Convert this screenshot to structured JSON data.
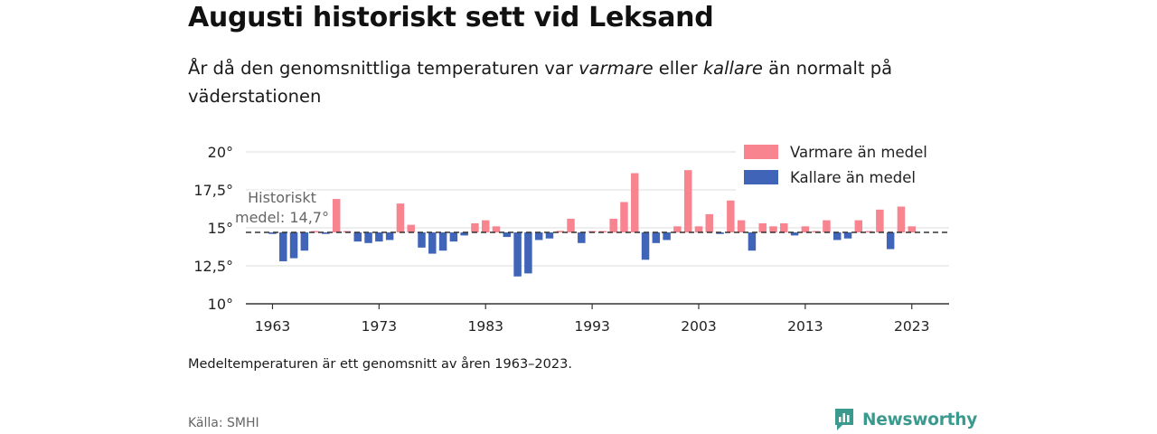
{
  "title": "Augusti historiskt sett vid Leksand",
  "subtitle": {
    "part1": "År då den genomsnittliga temperaturen var ",
    "warm_word": "varmare",
    "part2": " eller ",
    "cold_word": "kallare",
    "part3": " än normalt på väderstationen"
  },
  "note": "Medeltemperaturen är ett genomsnitt av åren 1963–2023.",
  "source": "Källa: SMHI",
  "brand": "Newsworthy",
  "colors": {
    "warm": "#f7848f",
    "cold": "#3f64b8",
    "brand": "#3a9a8e"
  },
  "chart_data": {
    "type": "bar",
    "baseline": 14.7,
    "baseline_label_line1": "Historiskt",
    "baseline_label_line2": "medel: 14,7°",
    "ylim": [
      10,
      20
    ],
    "yticks": [
      {
        "value": 10,
        "label": "10°"
      },
      {
        "value": 12.5,
        "label": "12,5°"
      },
      {
        "value": 15,
        "label": "15°"
      },
      {
        "value": 17.5,
        "label": "17,5°"
      },
      {
        "value": 20,
        "label": "20°"
      }
    ],
    "xticks": [
      {
        "value": 1963,
        "label": "1963"
      },
      {
        "value": 1973,
        "label": "1973"
      },
      {
        "value": 1983,
        "label": "1983"
      },
      {
        "value": 1993,
        "label": "1993"
      },
      {
        "value": 2003,
        "label": "2003"
      },
      {
        "value": 2013,
        "label": "2013"
      },
      {
        "value": 2023,
        "label": "2023"
      }
    ],
    "xlim": [
      1960.5,
      2026.5
    ],
    "legend": [
      {
        "key": "warm",
        "label": "Varmare än medel"
      },
      {
        "key": "cold",
        "label": "Kallare än medel"
      }
    ],
    "legend_position": "top-right",
    "grid": true,
    "years": [
      1963,
      1964,
      1965,
      1966,
      1967,
      1968,
      1969,
      1970,
      1971,
      1972,
      1973,
      1974,
      1975,
      1976,
      1977,
      1978,
      1979,
      1980,
      1981,
      1982,
      1983,
      1984,
      1985,
      1986,
      1987,
      1988,
      1989,
      1990,
      1991,
      1992,
      1993,
      1994,
      1995,
      1996,
      1997,
      1998,
      1999,
      2000,
      2001,
      2002,
      2003,
      2004,
      2005,
      2006,
      2007,
      2008,
      2009,
      2010,
      2011,
      2012,
      2013,
      2014,
      2015,
      2016,
      2017,
      2018,
      2019,
      2020,
      2021,
      2022,
      2023
    ],
    "values": [
      14.6,
      12.8,
      13.0,
      13.5,
      14.7,
      14.6,
      16.9,
      14.7,
      14.1,
      14.0,
      14.1,
      14.2,
      16.6,
      15.2,
      13.7,
      13.3,
      13.5,
      14.1,
      14.5,
      15.3,
      15.5,
      15.1,
      14.4,
      11.8,
      12.0,
      14.2,
      14.3,
      14.8,
      15.6,
      14.0,
      14.7,
      14.7,
      15.6,
      16.7,
      18.6,
      12.9,
      14.0,
      14.2,
      15.1,
      18.8,
      15.1,
      15.9,
      14.6,
      16.8,
      15.5,
      13.5,
      15.3,
      15.1,
      15.3,
      14.5,
      15.1,
      14.7,
      15.5,
      14.2,
      14.3,
      15.5,
      14.7,
      16.2,
      13.6,
      16.4,
      15.1
    ]
  }
}
